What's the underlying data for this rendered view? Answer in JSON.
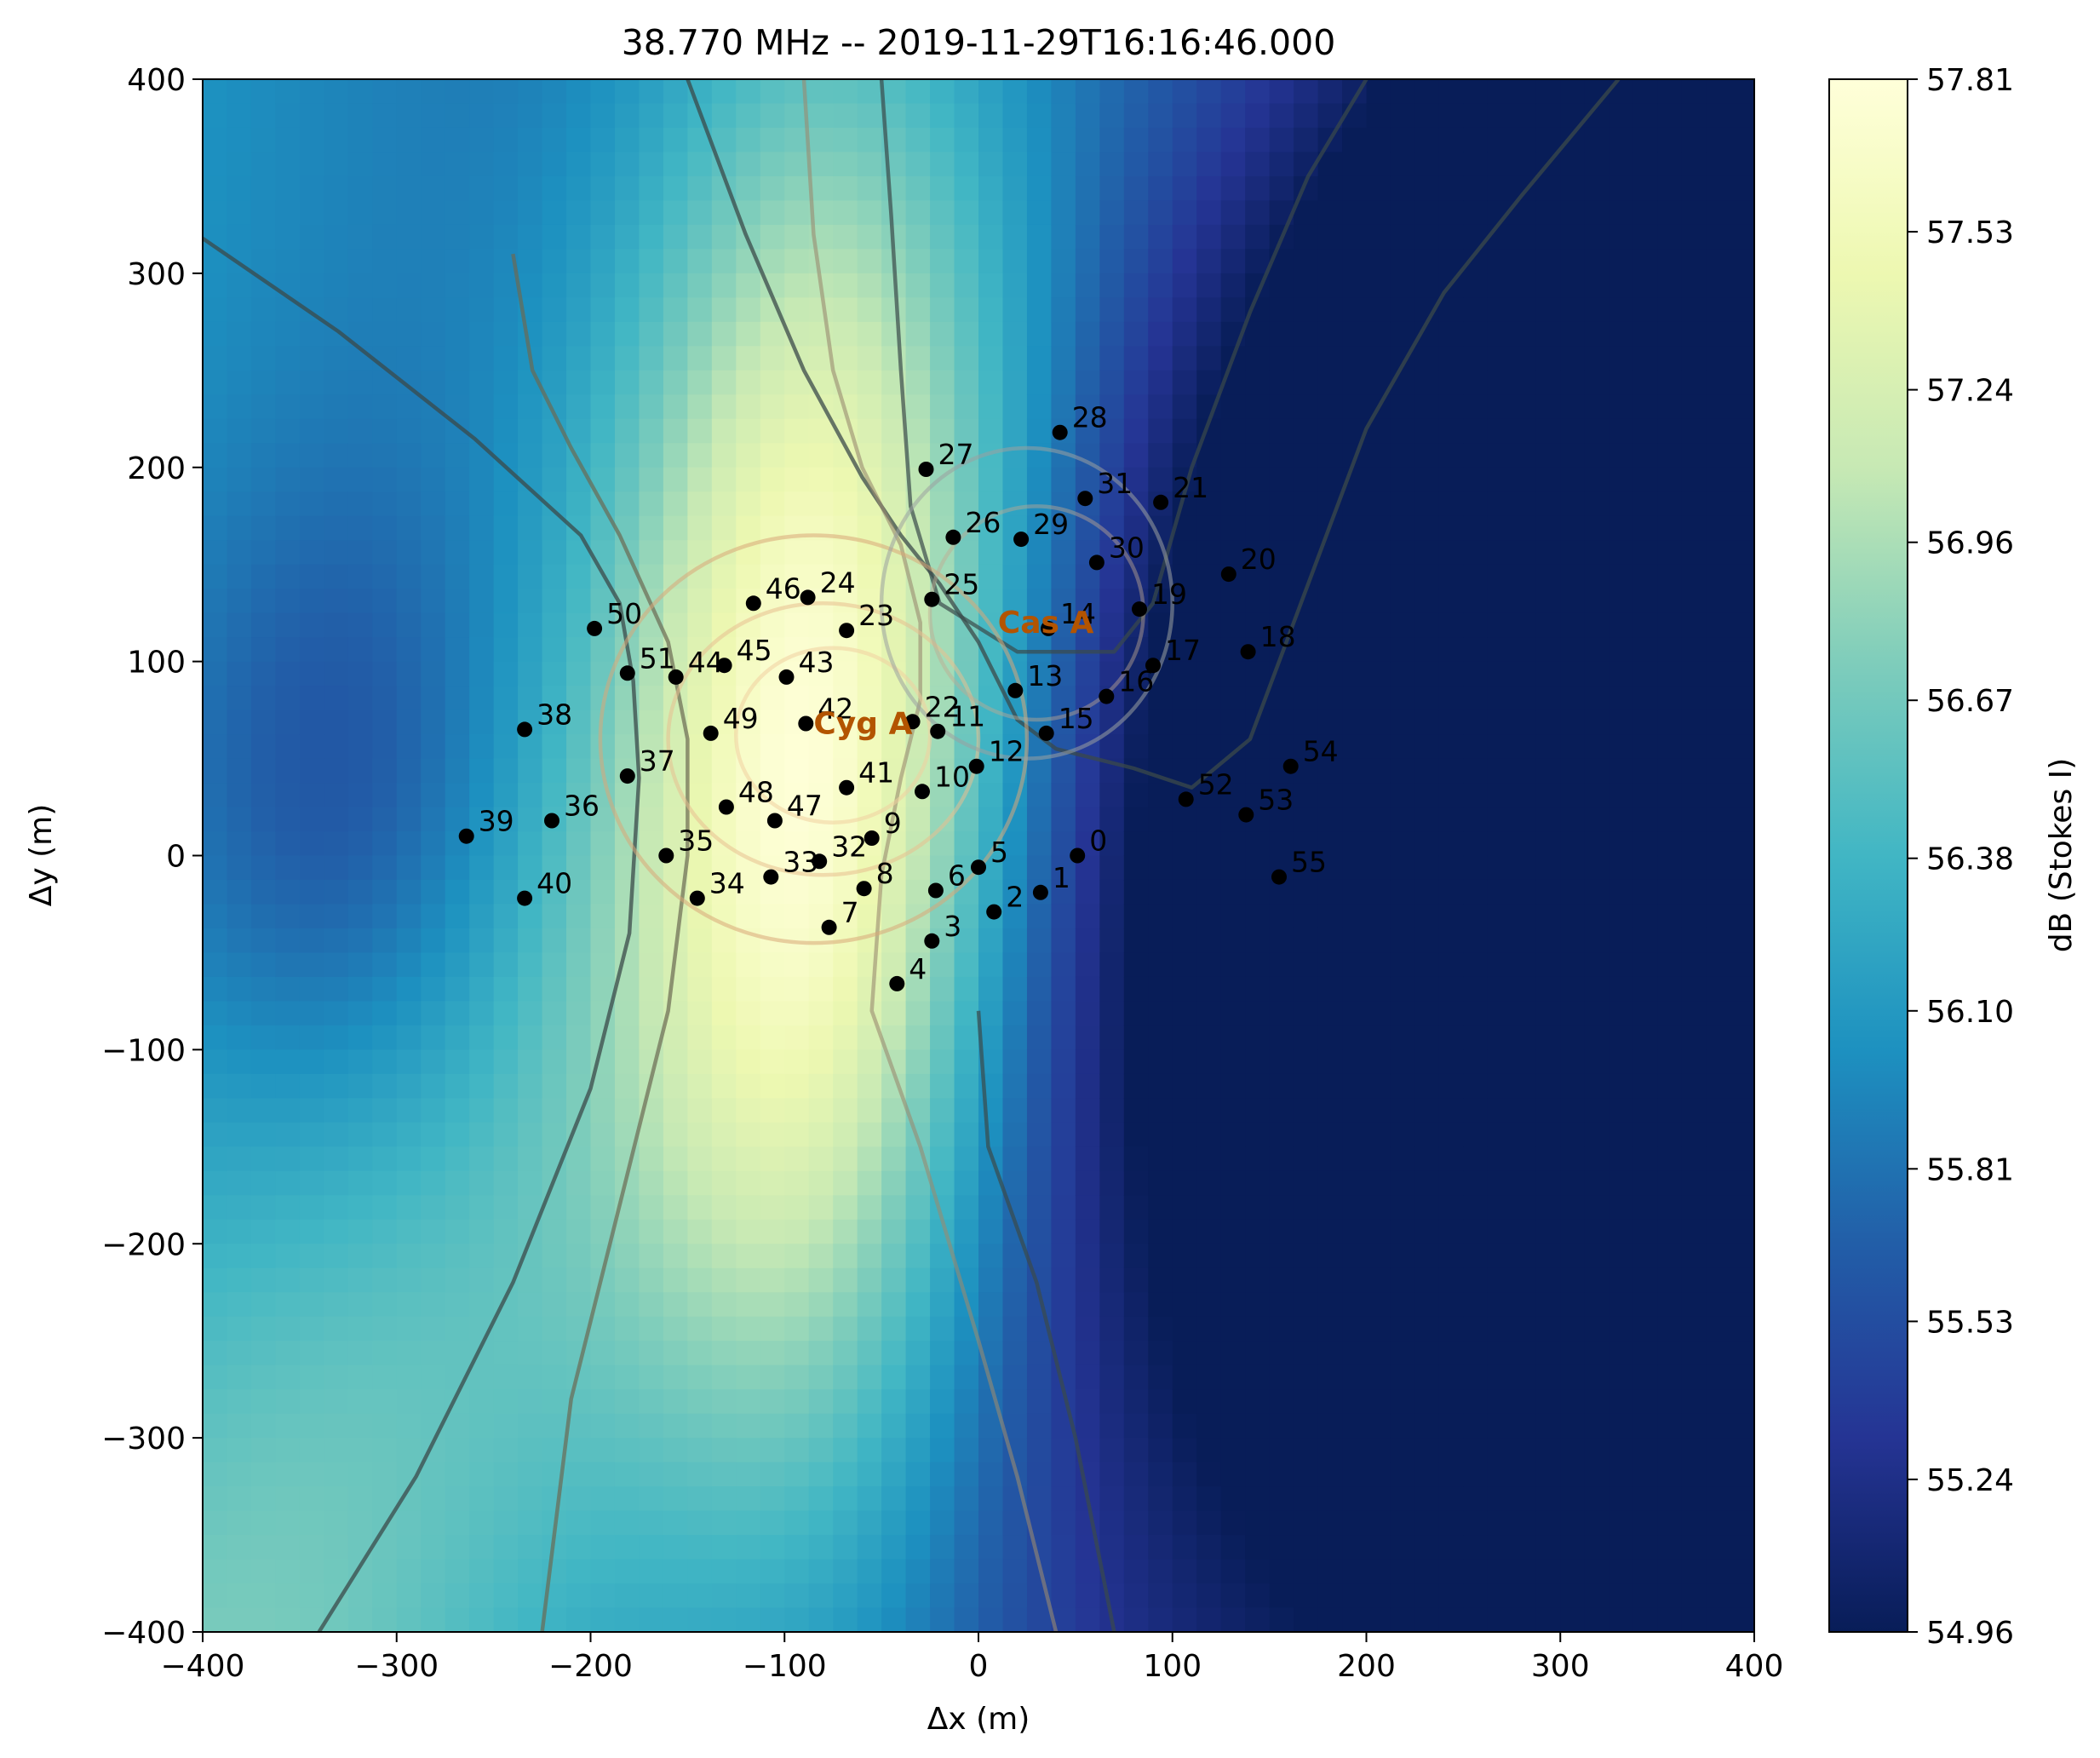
{
  "chart_data": {
    "type": "heatmap",
    "title": "38.770 MHz -- 2019-11-29T16:16:46.000",
    "xlabel": "Δx (m)",
    "ylabel": "Δy (m)",
    "xlim": [
      -400,
      400
    ],
    "ylim": [
      -400,
      400
    ],
    "xticks": [
      -400,
      -300,
      -200,
      -100,
      0,
      100,
      200,
      300,
      400
    ],
    "yticks": [
      -400,
      -300,
      -200,
      -100,
      0,
      100,
      200,
      300,
      400
    ],
    "xtick_labels": [
      "−400",
      "−300",
      "−200",
      "−100",
      "0",
      "100",
      "200",
      "300",
      "400"
    ],
    "ytick_labels": [
      "−400",
      "−300",
      "−200",
      "−100",
      "0",
      "100",
      "200",
      "300",
      "400"
    ],
    "colorbar": {
      "label": "dB (Stokes I)",
      "min": 54.96,
      "max": 57.81,
      "colormap": "YlGnBu_r",
      "ticks": [
        54.96,
        55.24,
        55.53,
        55.81,
        56.1,
        56.38,
        56.67,
        56.96,
        57.24,
        57.53,
        57.81
      ],
      "tick_labels": [
        "54.96",
        "55.24",
        "55.53",
        "55.81",
        "56.10",
        "56.38",
        "56.67",
        "56.96",
        "57.24",
        "57.53",
        "57.81"
      ]
    },
    "sources": [
      {
        "name": "Cyg A",
        "x": -85,
        "y": 68
      },
      {
        "name": "Cas A",
        "x": 10,
        "y": 120
      }
    ],
    "antennas": [
      {
        "id": "0",
        "x": 51,
        "y": 0
      },
      {
        "id": "1",
        "x": 32,
        "y": -19
      },
      {
        "id": "2",
        "x": 8,
        "y": -29
      },
      {
        "id": "3",
        "x": -24,
        "y": -44
      },
      {
        "id": "4",
        "x": -42,
        "y": -66
      },
      {
        "id": "5",
        "x": 0,
        "y": -6
      },
      {
        "id": "6",
        "x": -22,
        "y": -18
      },
      {
        "id": "7",
        "x": -77,
        "y": -37
      },
      {
        "id": "8",
        "x": -59,
        "y": -17
      },
      {
        "id": "9",
        "x": -55,
        "y": 9
      },
      {
        "id": "10",
        "x": -29,
        "y": 33
      },
      {
        "id": "11",
        "x": -21,
        "y": 64
      },
      {
        "id": "12",
        "x": -1,
        "y": 46
      },
      {
        "id": "13",
        "x": 19,
        "y": 85
      },
      {
        "id": "14",
        "x": 36,
        "y": 117
      },
      {
        "id": "15",
        "x": 35,
        "y": 63
      },
      {
        "id": "16",
        "x": 66,
        "y": 82
      },
      {
        "id": "17",
        "x": 90,
        "y": 98
      },
      {
        "id": "18",
        "x": 139,
        "y": 105
      },
      {
        "id": "19",
        "x": 83,
        "y": 127
      },
      {
        "id": "20",
        "x": 129,
        "y": 145
      },
      {
        "id": "21",
        "x": 94,
        "y": 182
      },
      {
        "id": "22",
        "x": -34,
        "y": 69
      },
      {
        "id": "23",
        "x": -68,
        "y": 116
      },
      {
        "id": "24",
        "x": -88,
        "y": 133
      },
      {
        "id": "25",
        "x": -24,
        "y": 132
      },
      {
        "id": "26",
        "x": -13,
        "y": 164
      },
      {
        "id": "27",
        "x": -27,
        "y": 199
      },
      {
        "id": "28",
        "x": 42,
        "y": 218
      },
      {
        "id": "29",
        "x": 22,
        "y": 163
      },
      {
        "id": "30",
        "x": 61,
        "y": 151
      },
      {
        "id": "31",
        "x": 55,
        "y": 184
      },
      {
        "id": "32",
        "x": -82,
        "y": -3
      },
      {
        "id": "33",
        "x": -107,
        "y": -11
      },
      {
        "id": "34",
        "x": -145,
        "y": -22
      },
      {
        "id": "35",
        "x": -161,
        "y": 0
      },
      {
        "id": "36",
        "x": -220,
        "y": 18
      },
      {
        "id": "37",
        "x": -181,
        "y": 41
      },
      {
        "id": "38",
        "x": -234,
        "y": 65
      },
      {
        "id": "39",
        "x": -264,
        "y": 10
      },
      {
        "id": "40",
        "x": -234,
        "y": -22
      },
      {
        "id": "41",
        "x": -68,
        "y": 35
      },
      {
        "id": "42",
        "x": -89,
        "y": 68
      },
      {
        "id": "43",
        "x": -99,
        "y": 92
      },
      {
        "id": "44",
        "x": -156,
        "y": 92
      },
      {
        "id": "45",
        "x": -131,
        "y": 98
      },
      {
        "id": "46",
        "x": -116,
        "y": 130
      },
      {
        "id": "47",
        "x": -105,
        "y": 18
      },
      {
        "id": "48",
        "x": -130,
        "y": 25
      },
      {
        "id": "49",
        "x": -138,
        "y": 63
      },
      {
        "id": "50",
        "x": -198,
        "y": 117
      },
      {
        "id": "51",
        "x": -181,
        "y": 94
      },
      {
        "id": "52",
        "x": 107,
        "y": 29
      },
      {
        "id": "53",
        "x": 138,
        "y": 21
      },
      {
        "id": "54",
        "x": 161,
        "y": 46
      },
      {
        "id": "55",
        "x": 155,
        "y": -11
      }
    ]
  }
}
